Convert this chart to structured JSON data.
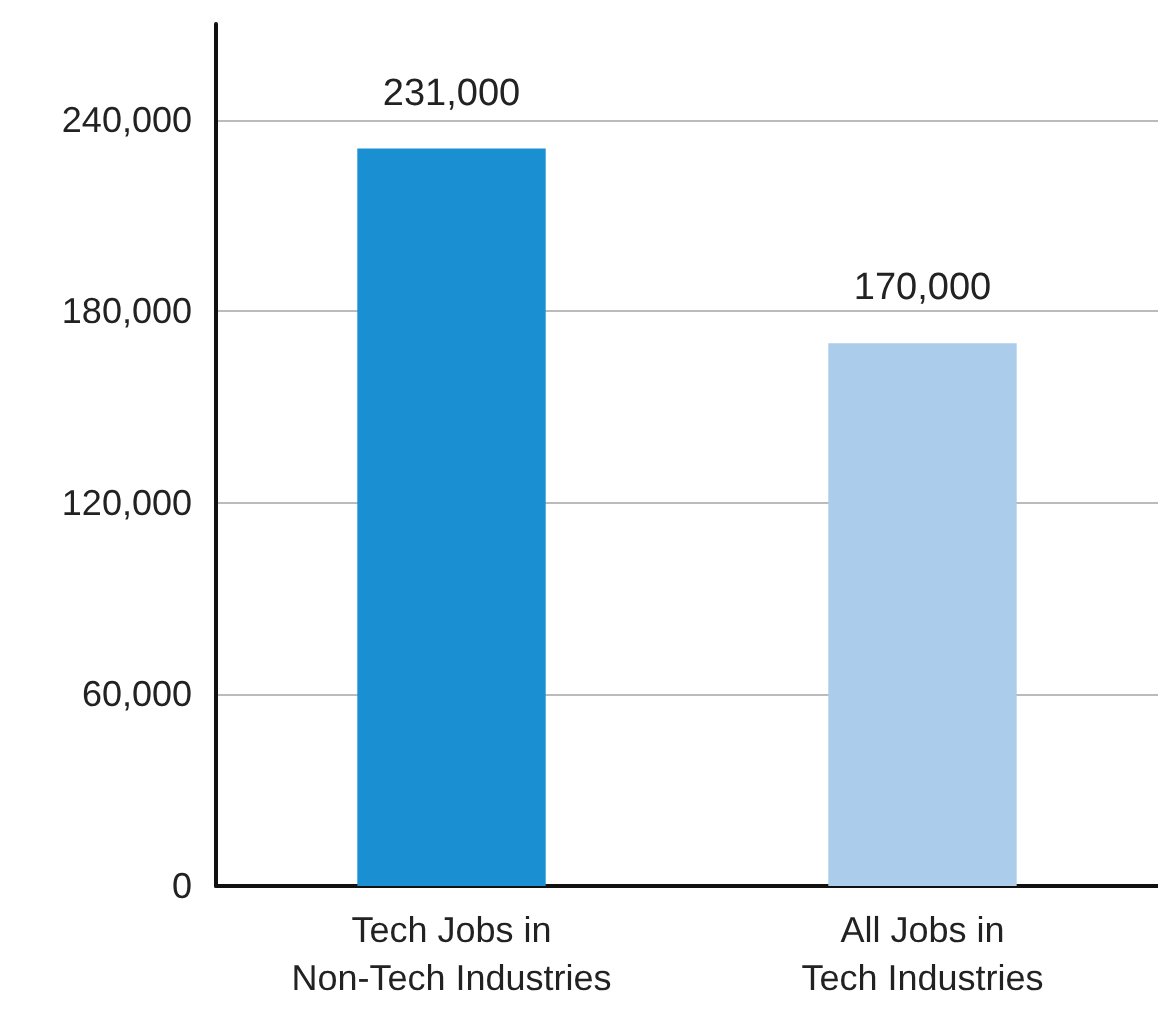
{
  "chart_data": {
    "type": "bar",
    "categories": [
      "Tech Jobs in\nNon-Tech Industries",
      "All Jobs in\nTech Industries"
    ],
    "values": [
      231000,
      170000
    ],
    "value_labels": [
      "231,000",
      "170,000"
    ],
    "colors": [
      "#1a90d2",
      "#abcdeb"
    ],
    "ylim": [
      0,
      270000
    ],
    "yticks": [
      0,
      {
        "value": 60000,
        "label": "60,000"
      },
      {
        "value": 120000,
        "label": "120,000"
      },
      {
        "value": 180000,
        "label": "180,000"
      },
      {
        "value": 240000,
        "label": "240,000"
      }
    ],
    "grid": "y"
  }
}
